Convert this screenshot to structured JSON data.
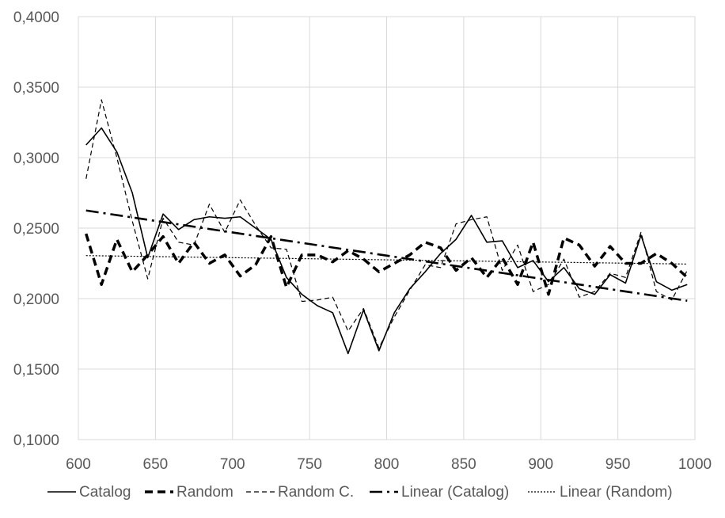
{
  "chart_data": {
    "type": "line",
    "title": "",
    "xlabel": "",
    "ylabel": "",
    "xlim": [
      600,
      1000
    ],
    "ylim": [
      0.1,
      0.4
    ],
    "x_ticks": [
      600,
      650,
      700,
      750,
      800,
      850,
      900,
      950,
      1000
    ],
    "x_tick_labels": [
      "600",
      "650",
      "700",
      "750",
      "800",
      "850",
      "900",
      "950",
      "1000"
    ],
    "y_ticks": [
      0.1,
      0.15,
      0.2,
      0.25,
      0.3,
      0.35,
      0.4
    ],
    "y_tick_labels": [
      "0,1000",
      "0,1500",
      "0,2000",
      "0,2500",
      "0,3000",
      "0,3500",
      "0,4000"
    ],
    "grid": "on",
    "legend_position": "bottom",
    "series": [
      {
        "name": "Catalog",
        "style": "solid",
        "color": "#000000",
        "x": [
          605,
          615,
          625,
          635,
          645,
          655,
          665,
          675,
          685,
          695,
          705,
          715,
          725,
          735,
          745,
          755,
          765,
          775,
          785,
          795,
          805,
          815,
          825,
          835,
          845,
          855,
          865,
          875,
          885,
          895,
          905,
          915,
          925,
          935,
          945,
          955,
          965,
          975,
          985,
          995
        ],
        "y": [
          0.309,
          0.321,
          0.304,
          0.275,
          0.229,
          0.26,
          0.249,
          0.256,
          0.258,
          0.257,
          0.258,
          0.25,
          0.242,
          0.215,
          0.203,
          0.195,
          0.19,
          0.161,
          0.192,
          0.163,
          0.19,
          0.207,
          0.219,
          0.232,
          0.242,
          0.259,
          0.24,
          0.241,
          0.222,
          0.227,
          0.212,
          0.222,
          0.207,
          0.203,
          0.217,
          0.211,
          0.245,
          0.212,
          0.206,
          0.21
        ]
      },
      {
        "name": "Random",
        "style": "dashed-heavy",
        "color": "#000000",
        "x": [
          605,
          615,
          625,
          635,
          645,
          655,
          665,
          675,
          685,
          695,
          705,
          715,
          725,
          735,
          745,
          755,
          765,
          775,
          785,
          795,
          805,
          815,
          825,
          835,
          845,
          855,
          865,
          875,
          885,
          895,
          905,
          915,
          925,
          935,
          945,
          955,
          965,
          975,
          985,
          995
        ],
        "y": [
          0.246,
          0.21,
          0.242,
          0.219,
          0.231,
          0.244,
          0.225,
          0.24,
          0.225,
          0.231,
          0.216,
          0.224,
          0.244,
          0.208,
          0.231,
          0.231,
          0.226,
          0.234,
          0.228,
          0.219,
          0.225,
          0.231,
          0.24,
          0.236,
          0.22,
          0.229,
          0.215,
          0.229,
          0.21,
          0.24,
          0.203,
          0.243,
          0.238,
          0.223,
          0.237,
          0.225,
          0.225,
          0.232,
          0.225,
          0.215
        ]
      },
      {
        "name": "Random C.",
        "style": "dashed-thin",
        "color": "#000000",
        "x": [
          605,
          615,
          625,
          635,
          645,
          655,
          665,
          675,
          685,
          695,
          705,
          715,
          725,
          735,
          745,
          755,
          765,
          775,
          785,
          795,
          805,
          815,
          825,
          835,
          845,
          855,
          865,
          875,
          885,
          895,
          905,
          915,
          925,
          935,
          945,
          955,
          965,
          975,
          985,
          995
        ],
        "y": [
          0.285,
          0.341,
          0.3,
          0.255,
          0.214,
          0.257,
          0.24,
          0.238,
          0.267,
          0.247,
          0.27,
          0.252,
          0.236,
          0.235,
          0.198,
          0.199,
          0.201,
          0.177,
          0.193,
          0.165,
          0.187,
          0.206,
          0.224,
          0.222,
          0.253,
          0.256,
          0.258,
          0.22,
          0.238,
          0.205,
          0.21,
          0.228,
          0.201,
          0.205,
          0.218,
          0.215,
          0.247,
          0.205,
          0.199,
          0.22
        ]
      },
      {
        "name": "Linear (Catalog)",
        "style": "dash-dot",
        "color": "#000000",
        "x": [
          605,
          995
        ],
        "y": [
          0.2625,
          0.1985
        ]
      },
      {
        "name": "Linear (Random)",
        "style": "dotted",
        "color": "#000000",
        "x": [
          605,
          995
        ],
        "y": [
          0.2305,
          0.2245
        ]
      }
    ]
  }
}
